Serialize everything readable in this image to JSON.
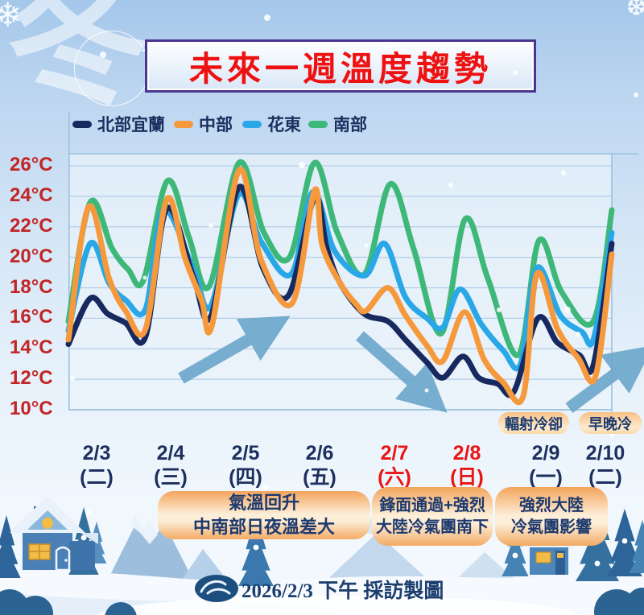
{
  "title": "未來一週溫度趨勢",
  "watermark_char": "冬",
  "legend": [
    {
      "label": "北部宜蘭",
      "color": "#17295e"
    },
    {
      "label": "中部",
      "color": "#f6993c"
    },
    {
      "label": "花東",
      "color": "#29a7e6"
    },
    {
      "label": "南部",
      "color": "#3db878"
    }
  ],
  "chart_data": {
    "type": "line",
    "title": "未來一週溫度趨勢",
    "ylabel": "°C",
    "ylim": [
      10,
      26
    ],
    "y_ticks": [
      26,
      24,
      22,
      20,
      18,
      16,
      14,
      12,
      10
    ],
    "y_unit": "°C",
    "grid": "horizontal",
    "legend_position": "top",
    "x_categories": [
      {
        "date": "2/3",
        "weekday": "(二)",
        "weekend": false
      },
      {
        "date": "2/4",
        "weekday": "(三)",
        "weekend": false
      },
      {
        "date": "2/5",
        "weekday": "(四)",
        "weekend": false
      },
      {
        "date": "2/6",
        "weekday": "(五)",
        "weekend": false
      },
      {
        "date": "2/7",
        "weekday": "(六)",
        "weekend": true
      },
      {
        "date": "2/8",
        "weekday": "(日)",
        "weekend": true
      },
      {
        "date": "2/9",
        "weekday": "(一)",
        "weekend": false
      },
      {
        "date": "2/10",
        "weekday": "(二)",
        "weekend": false
      }
    ],
    "x_note": "x is normalized 0-1 across 2/3 through 2/10; each day shows a morning low and afternoon peak",
    "series": [
      {
        "name": "南部",
        "color": "#3db878",
        "points": [
          [
            0,
            15.8
          ],
          [
            0.04,
            23.6
          ],
          [
            0.08,
            20.6
          ],
          [
            0.11,
            19.2
          ],
          [
            0.138,
            18.5
          ],
          [
            0.182,
            25.0
          ],
          [
            0.222,
            21.3
          ],
          [
            0.259,
            18.1
          ],
          [
            0.314,
            26.2
          ],
          [
            0.36,
            21.6
          ],
          [
            0.407,
            20.0
          ],
          [
            0.453,
            26.2
          ],
          [
            0.495,
            21.6
          ],
          [
            0.545,
            18.9
          ],
          [
            0.592,
            24.8
          ],
          [
            0.635,
            20.6
          ],
          [
            0.686,
            15.0
          ],
          [
            0.73,
            22.5
          ],
          [
            0.772,
            18.6
          ],
          [
            0.828,
            13.6
          ],
          [
            0.866,
            21.1
          ],
          [
            0.908,
            17.7
          ],
          [
            0.966,
            15.8
          ],
          [
            1.0,
            23.1
          ]
        ]
      },
      {
        "name": "花東",
        "color": "#29a7e6",
        "points": [
          [
            0,
            15.2
          ],
          [
            0.04,
            20.9
          ],
          [
            0.075,
            18.3
          ],
          [
            0.105,
            17.2
          ],
          [
            0.142,
            16.6
          ],
          [
            0.175,
            23.1
          ],
          [
            0.23,
            19.2
          ],
          [
            0.262,
            16.8
          ],
          [
            0.313,
            24.1
          ],
          [
            0.355,
            21.0
          ],
          [
            0.41,
            18.9
          ],
          [
            0.45,
            24.3
          ],
          [
            0.49,
            20.4
          ],
          [
            0.545,
            18.8
          ],
          [
            0.582,
            20.9
          ],
          [
            0.62,
            17.4
          ],
          [
            0.66,
            16.0
          ],
          [
            0.689,
            15.4
          ],
          [
            0.721,
            17.9
          ],
          [
            0.76,
            15.6
          ],
          [
            0.8,
            13.9
          ],
          [
            0.832,
            13.0
          ],
          [
            0.862,
            19.3
          ],
          [
            0.905,
            16.2
          ],
          [
            0.945,
            15.1
          ],
          [
            0.967,
            14.7
          ],
          [
            1.0,
            21.6
          ]
        ]
      },
      {
        "name": "北部宜蘭",
        "color": "#17295e",
        "points": [
          [
            0,
            14.3
          ],
          [
            0.04,
            17.3
          ],
          [
            0.072,
            16.3
          ],
          [
            0.105,
            15.7
          ],
          [
            0.142,
            14.8
          ],
          [
            0.181,
            23.2
          ],
          [
            0.23,
            18.7
          ],
          [
            0.262,
            16.1
          ],
          [
            0.314,
            24.6
          ],
          [
            0.358,
            19.3
          ],
          [
            0.405,
            17.5
          ],
          [
            0.453,
            23.9
          ],
          [
            0.475,
            20.7
          ],
          [
            0.5,
            18.3
          ],
          [
            0.544,
            16.3
          ],
          [
            0.588,
            15.8
          ],
          [
            0.62,
            14.6
          ],
          [
            0.66,
            13.1
          ],
          [
            0.689,
            12.1
          ],
          [
            0.726,
            13.5
          ],
          [
            0.755,
            12.1
          ],
          [
            0.79,
            11.7
          ],
          [
            0.82,
            11.2
          ],
          [
            0.864,
            16.0
          ],
          [
            0.9,
            14.4
          ],
          [
            0.94,
            13.6
          ],
          [
            0.966,
            12.9
          ],
          [
            1.0,
            20.9
          ]
        ]
      },
      {
        "name": "中部",
        "color": "#f6993c",
        "points": [
          [
            0,
            14.6
          ],
          [
            0.037,
            23.3
          ],
          [
            0.075,
            18.6
          ],
          [
            0.105,
            16.5
          ],
          [
            0.142,
            15.3
          ],
          [
            0.181,
            23.8
          ],
          [
            0.215,
            19.9
          ],
          [
            0.245,
            17.2
          ],
          [
            0.264,
            15.5
          ],
          [
            0.314,
            25.7
          ],
          [
            0.355,
            19.8
          ],
          [
            0.412,
            17.0
          ],
          [
            0.453,
            24.4
          ],
          [
            0.467,
            20.8
          ],
          [
            0.5,
            18.3
          ],
          [
            0.53,
            16.9
          ],
          [
            0.548,
            16.5
          ],
          [
            0.588,
            18.0
          ],
          [
            0.62,
            16.2
          ],
          [
            0.66,
            14.2
          ],
          [
            0.689,
            13.2
          ],
          [
            0.729,
            16.4
          ],
          [
            0.765,
            13.3
          ],
          [
            0.8,
            11.8
          ],
          [
            0.837,
            10.9
          ],
          [
            0.862,
            18.9
          ],
          [
            0.9,
            15.3
          ],
          [
            0.938,
            13.4
          ],
          [
            0.97,
            12.2
          ],
          [
            1.0,
            20.2
          ]
        ]
      }
    ]
  },
  "annotations": {
    "notes": [
      {
        "text": "輻射冷卻"
      },
      {
        "text": "早晚冷"
      }
    ],
    "boxes": [
      {
        "lines": [
          "氣溫回升",
          "中南部日夜溫差大"
        ]
      },
      {
        "lines": [
          "鋒面通過+強烈",
          "大陸冷氣團南下"
        ]
      },
      {
        "lines": [
          "強烈大陸",
          "冷氣團影響"
        ]
      }
    ],
    "arrows": [
      {
        "meaning": "warming trend 2/4-2/5",
        "direction": "up-right"
      },
      {
        "meaning": "cooling trend 2/7-2/8",
        "direction": "down-right"
      },
      {
        "meaning": "warming trend 2/10",
        "direction": "up-right"
      }
    ]
  },
  "footer": {
    "logo": "cwa-logo",
    "text": "2026/2/3 下午 採訪製圖"
  }
}
